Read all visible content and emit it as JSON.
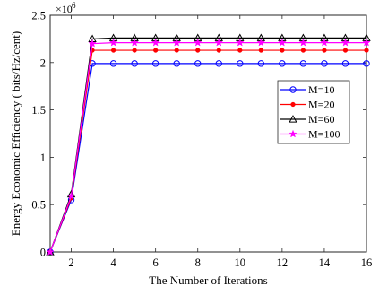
{
  "chart_data": {
    "type": "line",
    "title": "",
    "xlabel": "The Number of Iterations",
    "ylabel": "Energy Economic Efficiency ( bits/Hz/cent)",
    "y_multiplier": "×10",
    "y_multiplier_exp": "6",
    "xlim": [
      1,
      16
    ],
    "ylim": [
      0,
      2.5
    ],
    "xticks": [
      2,
      4,
      6,
      8,
      10,
      12,
      14,
      16
    ],
    "xtick_labels": [
      "2",
      "4",
      "6",
      "8",
      "10",
      "12",
      "14",
      "16"
    ],
    "yticks": [
      0,
      0.5,
      1,
      1.5,
      2,
      2.5
    ],
    "ytick_labels": [
      "0",
      "0.5",
      "1",
      "1.5",
      "2",
      "2.5"
    ],
    "grid": false,
    "legend_position": "right",
    "x": [
      1,
      2,
      3,
      4,
      5,
      6,
      7,
      8,
      9,
      10,
      11,
      12,
      13,
      14,
      15,
      16
    ],
    "series": [
      {
        "name": "M=10",
        "color": "#0000ff",
        "marker": "circle",
        "values": [
          0,
          550000,
          1990000,
          1990000,
          1990000,
          1990000,
          1990000,
          1990000,
          1990000,
          1990000,
          1990000,
          1990000,
          1990000,
          1990000,
          1990000,
          1990000
        ]
      },
      {
        "name": "M=20",
        "color": "#ff0000",
        "marker": "dot",
        "values": [
          0,
          570000,
          2130000,
          2130000,
          2130000,
          2130000,
          2130000,
          2130000,
          2130000,
          2130000,
          2130000,
          2130000,
          2130000,
          2130000,
          2130000,
          2130000
        ]
      },
      {
        "name": "M=60",
        "color": "#000000",
        "marker": "triangle",
        "values": [
          0,
          610000,
          2250000,
          2260000,
          2260000,
          2260000,
          2260000,
          2260000,
          2260000,
          2260000,
          2260000,
          2260000,
          2260000,
          2260000,
          2260000,
          2260000
        ]
      },
      {
        "name": "M=100",
        "color": "#ff00ff",
        "marker": "star",
        "values": [
          0,
          590000,
          2200000,
          2210000,
          2210000,
          2210000,
          2210000,
          2210000,
          2210000,
          2210000,
          2210000,
          2210000,
          2210000,
          2210000,
          2210000,
          2210000
        ]
      }
    ]
  }
}
